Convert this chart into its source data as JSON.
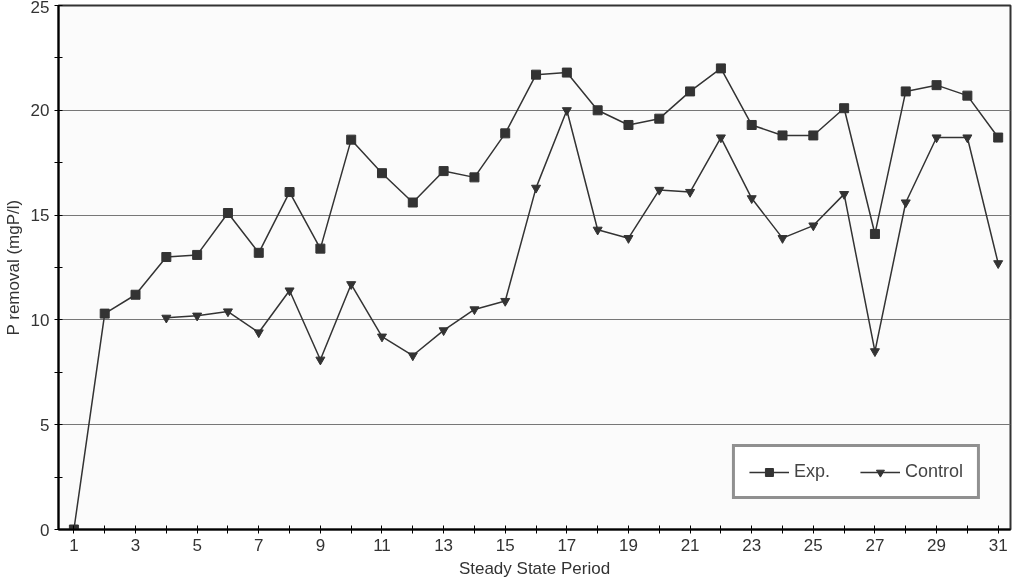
{
  "chart_data": {
    "type": "line",
    "xlabel": "Steady State Period",
    "ylabel": "P removal (mgP/l)",
    "x": [
      1,
      2,
      3,
      4,
      5,
      6,
      7,
      8,
      9,
      10,
      11,
      12,
      13,
      14,
      15,
      16,
      17,
      18,
      19,
      20,
      21,
      22,
      23,
      24,
      25,
      26,
      27,
      28,
      29,
      30,
      31
    ],
    "series": [
      {
        "name": "Exp.",
        "color": "#333333",
        "marker": "square",
        "values": [
          0,
          10.3,
          11.2,
          13.0,
          13.1,
          15.1,
          13.2,
          16.1,
          13.4,
          18.6,
          17.0,
          15.6,
          17.1,
          16.8,
          18.9,
          21.7,
          21.8,
          20.0,
          19.3,
          19.6,
          20.9,
          22.0,
          19.3,
          18.8,
          18.8,
          20.1,
          14.1,
          20.9,
          21.2,
          20.7,
          18.7
        ]
      },
      {
        "name": "Control",
        "color": "#333333",
        "marker": "triangle",
        "values": [
          null,
          null,
          null,
          10.1,
          10.2,
          10.4,
          9.4,
          11.4,
          8.1,
          11.7,
          9.2,
          8.3,
          9.5,
          10.5,
          10.9,
          16.3,
          20.0,
          14.3,
          13.9,
          16.2,
          16.1,
          18.7,
          15.8,
          13.9,
          14.5,
          16.0,
          8.5,
          15.6,
          18.7,
          18.7,
          12.7
        ]
      }
    ],
    "xlim": [
      0.5,
      31.4
    ],
    "ylim": [
      0,
      25
    ],
    "xticks": [
      1,
      {
        "value": 2,
        "label": null
      },
      3,
      {
        "value": 4,
        "label": null
      },
      5,
      {
        "value": 6,
        "label": null
      },
      7,
      {
        "value": 8,
        "label": null
      },
      9,
      {
        "value": 10,
        "label": null
      },
      11,
      {
        "value": 12,
        "label": null
      },
      13,
      {
        "value": 14,
        "label": null
      },
      15,
      {
        "value": 16,
        "label": null
      },
      17,
      {
        "value": 18,
        "label": null
      },
      19,
      {
        "value": 20,
        "label": null
      },
      21,
      {
        "value": 22,
        "label": null
      },
      23,
      {
        "value": 24,
        "label": null
      },
      25,
      {
        "value": 26,
        "label": null
      },
      27,
      {
        "value": 28,
        "label": null
      },
      29,
      {
        "value": 30,
        "label": null
      },
      31
    ],
    "yticks": [
      0,
      {
        "value": 2.5,
        "label": null
      },
      5,
      {
        "value": 7.5,
        "label": null
      },
      10,
      {
        "value": 12.5,
        "label": null
      },
      15,
      {
        "value": 17.5,
        "label": null
      },
      20,
      {
        "value": 22.5,
        "label": null
      },
      25
    ],
    "grid": "y",
    "legend": "bottom right",
    "line_style": "solid"
  }
}
